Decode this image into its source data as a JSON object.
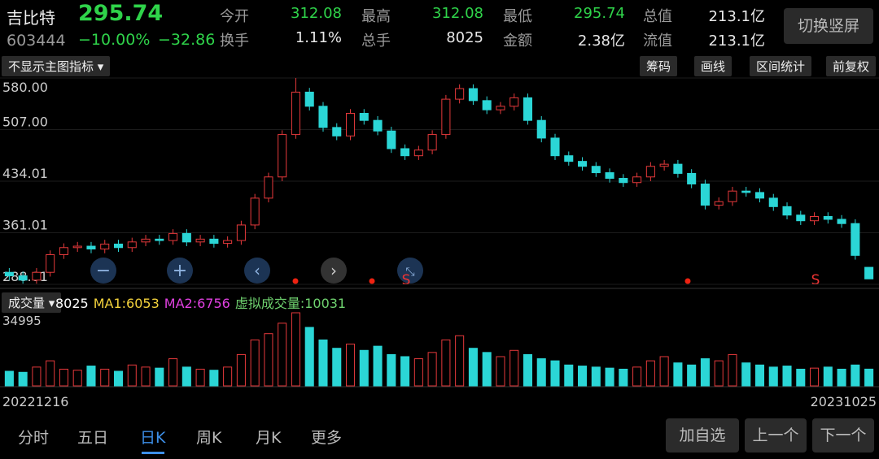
{
  "header": {
    "name": "吉比特",
    "price": "295.74",
    "code": "603444",
    "change_pct": "−10.00%",
    "change": "−32.86",
    "stats": [
      [
        "今开",
        "312.08"
      ],
      [
        "最高",
        "312.08"
      ],
      [
        "最低",
        "295.74"
      ],
      [
        "总值",
        "213.1亿"
      ],
      [
        "换手",
        "1.11%"
      ],
      [
        "总手",
        "8025"
      ],
      [
        "金额",
        "2.38亿"
      ],
      [
        "流值",
        "213.1亿"
      ]
    ],
    "button": "切换竖屏"
  },
  "toolbar": {
    "indicator": "不显示主图指标",
    "buttons": [
      "筹码",
      "画线",
      "区间统计",
      "前复权"
    ]
  },
  "volume_legend": {
    "title": "成交量",
    "items": [
      "8025",
      "MA1:6053",
      "MA2:6756",
      "虚拟成交量:10031"
    ]
  },
  "signals": [
    "S",
    "S"
  ],
  "chart_data": {
    "type": "candlestick",
    "open": [
      305,
      300,
      294,
      305,
      330,
      340,
      342,
      338,
      345,
      340,
      348,
      352,
      350,
      360,
      348,
      352,
      346,
      350,
      372,
      410,
      440,
      500,
      560,
      540,
      510,
      498,
      530,
      520,
      505,
      480,
      470,
      478,
      500,
      550,
      565,
      548,
      535,
      540,
      552,
      520,
      495,
      470,
      462,
      455,
      446,
      438,
      432,
      440,
      455,
      458,
      445,
      430,
      400,
      405,
      420,
      418,
      410,
      398,
      386,
      378,
      384,
      380,
      374,
      312.08
    ],
    "close": [
      300,
      294,
      305,
      330,
      340,
      342,
      338,
      345,
      340,
      348,
      352,
      350,
      360,
      348,
      352,
      346,
      350,
      372,
      410,
      440,
      500,
      560,
      540,
      510,
      498,
      530,
      520,
      505,
      480,
      470,
      478,
      500,
      550,
      565,
      548,
      535,
      540,
      552,
      520,
      495,
      470,
      462,
      455,
      446,
      438,
      432,
      440,
      455,
      458,
      445,
      430,
      400,
      405,
      420,
      418,
      410,
      398,
      386,
      378,
      384,
      380,
      374,
      329,
      295.74
    ],
    "high": [
      311,
      306,
      311,
      336,
      346,
      348,
      348,
      351,
      351,
      354,
      358,
      358,
      366,
      366,
      358,
      358,
      356,
      378,
      416,
      446,
      506,
      580,
      566,
      546,
      516,
      536,
      536,
      526,
      511,
      486,
      484,
      506,
      556,
      571,
      571,
      554,
      546,
      558,
      558,
      526,
      501,
      476,
      468,
      461,
      452,
      444,
      446,
      461,
      464,
      464,
      451,
      436,
      411,
      426,
      426,
      424,
      416,
      404,
      392,
      390,
      390,
      386,
      380,
      312.08
    ],
    "low": [
      294,
      289,
      289,
      299,
      324,
      334,
      332,
      332,
      334,
      334,
      342,
      344,
      344,
      342,
      342,
      340,
      340,
      344,
      366,
      404,
      434,
      494,
      534,
      504,
      492,
      492,
      514,
      499,
      474,
      464,
      464,
      472,
      494,
      544,
      542,
      529,
      529,
      534,
      514,
      489,
      464,
      456,
      449,
      440,
      432,
      426,
      426,
      434,
      449,
      439,
      424,
      394,
      394,
      399,
      412,
      404,
      392,
      380,
      372,
      372,
      374,
      368,
      323,
      295.74
    ],
    "volume": [
      7000,
      6500,
      9000,
      12000,
      8000,
      7500,
      9500,
      8000,
      7000,
      10000,
      9000,
      8500,
      13000,
      9000,
      8000,
      7500,
      9000,
      15000,
      22000,
      25000,
      30000,
      34995,
      28000,
      22000,
      18000,
      20000,
      17000,
      19000,
      15000,
      14000,
      13000,
      16000,
      22000,
      24000,
      18000,
      16000,
      14000,
      17000,
      15000,
      13000,
      12000,
      10000,
      9500,
      9000,
      8500,
      8000,
      9000,
      12000,
      14000,
      11000,
      10000,
      13000,
      12000,
      15000,
      11000,
      10000,
      9000,
      9500,
      8000,
      8500,
      9000,
      8000,
      10000,
      8025
    ],
    "ylim": [
      288.01,
      580
    ],
    "yticks": [
      {
        "value": 580,
        "label": "580.00"
      },
      {
        "value": 507,
        "label": "507.00"
      },
      434.01,
      361.01,
      288.01
    ],
    "volume_ylim": [
      0,
      34995
    ],
    "volume_yticks": [
      34995
    ],
    "dates": [
      "20221216",
      "20231025"
    ],
    "up_color": "#e5393b",
    "down_color": "#2bd6d6"
  },
  "tabs": [
    "分时",
    "五日",
    "日K",
    "周K",
    "月K",
    "更多"
  ],
  "actions": [
    "加自选",
    "上一个",
    "下一个"
  ]
}
